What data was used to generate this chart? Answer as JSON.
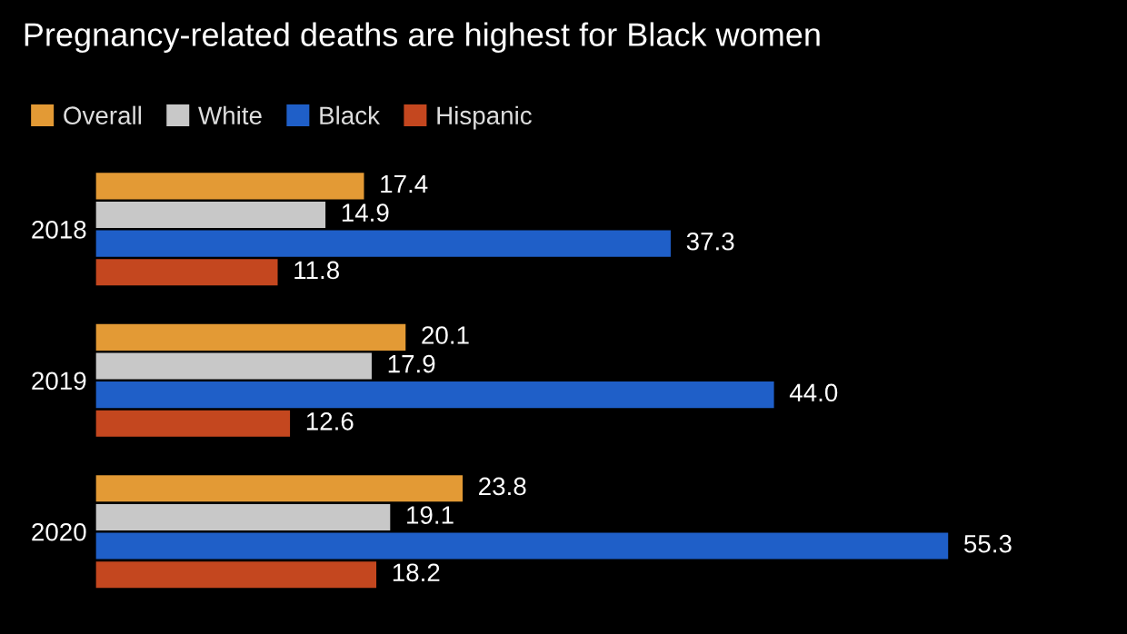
{
  "chart_data": {
    "type": "bar",
    "orientation": "horizontal",
    "title": "Pregnancy-related deaths are highest for Black women",
    "categories": [
      "2018",
      "2019",
      "2020"
    ],
    "series": [
      {
        "name": "Overall",
        "color": "#e39a35",
        "values": [
          17.4,
          20.1,
          23.8
        ],
        "value_labels": [
          "17.4",
          "20.1",
          "23.8"
        ]
      },
      {
        "name": "White",
        "color": "#c8c8c8",
        "values": [
          14.9,
          17.9,
          19.1
        ],
        "value_labels": [
          "14.9",
          "17.9",
          "19.1"
        ]
      },
      {
        "name": "Black",
        "color": "#1f5fc8",
        "values": [
          37.3,
          44.0,
          55.3
        ],
        "value_labels": [
          "37.3",
          "44.0",
          "55.3"
        ]
      },
      {
        "name": "Hispanic",
        "color": "#c4471f",
        "values": [
          11.8,
          12.6,
          18.2
        ],
        "value_labels": [
          "11.8",
          "12.6",
          "18.2"
        ]
      }
    ],
    "tick_labels": "y",
    "legend": "top left"
  }
}
